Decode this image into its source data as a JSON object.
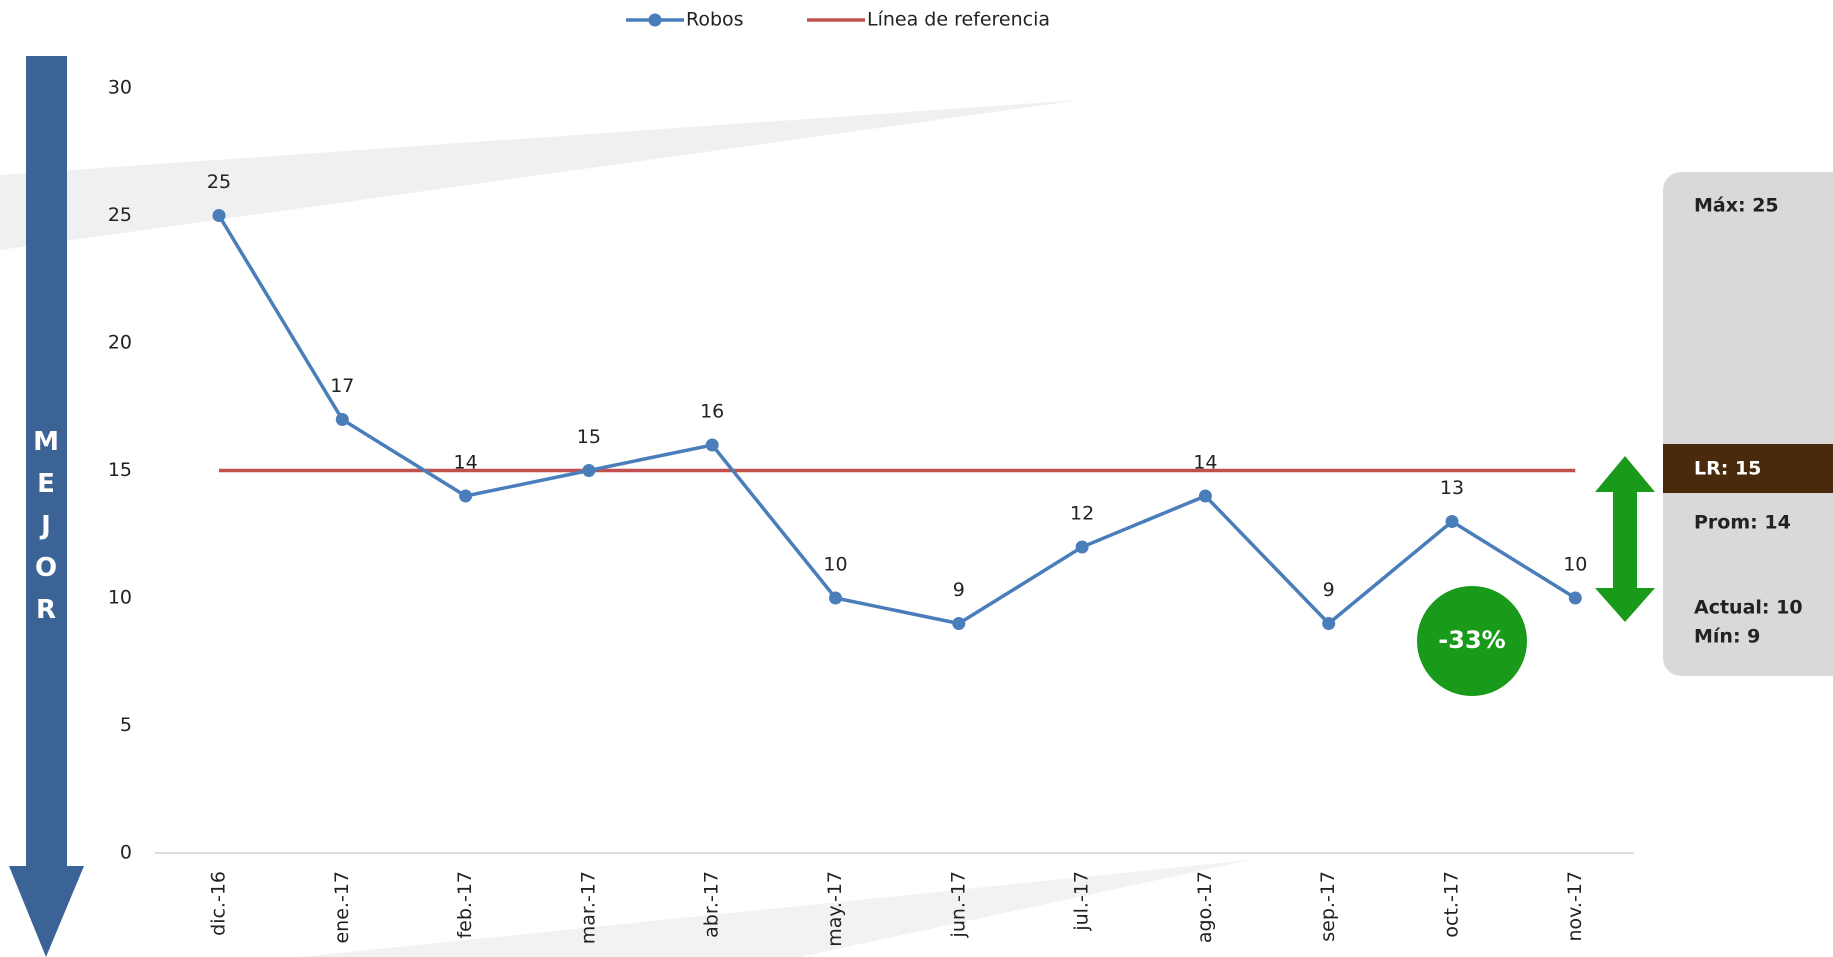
{
  "chart_data": {
    "type": "line",
    "categories": [
      "dic.-16",
      "ene.-17",
      "feb.-17",
      "mar.-17",
      "abr.-17",
      "may.-17",
      "jun.-17",
      "jul.-17",
      "ago.-17",
      "sep.-17",
      "oct.-17",
      "nov.-17"
    ],
    "series": [
      {
        "name": "Robos",
        "color": "#4a7ebb",
        "values": [
          25,
          17,
          14,
          15,
          16,
          10,
          9,
          12,
          14,
          9,
          13,
          10
        ],
        "data_labels": true
      },
      {
        "name": "Línea de referencia",
        "color": "#c0504d",
        "values": [
          15,
          15,
          15,
          15,
          15,
          15,
          15,
          15,
          15,
          15,
          15,
          15
        ]
      }
    ],
    "ylim": [
      0,
      30
    ],
    "yticks": [
      0,
      5,
      10,
      15,
      20,
      25,
      30
    ],
    "grid": false,
    "legend": "top"
  },
  "side_arrow": {
    "text": "MEJOR"
  },
  "panel": {
    "max": "Máx: 25",
    "lr": "LR:  15",
    "prom": "Prom: 14",
    "actual": "Actual: 10",
    "min": "Mín: 9"
  },
  "badge": "-33%"
}
